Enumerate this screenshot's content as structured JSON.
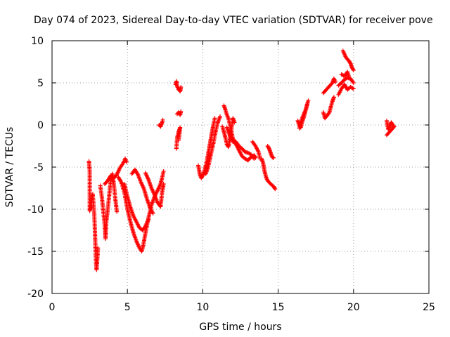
{
  "chart_data": {
    "type": "scatter",
    "title": "Day 074 of 2023, Sidereal Day-to-day VTEC variation (SDTVAR) for receiver pove",
    "xlabel": "GPS time / hours",
    "ylabel": "SDTVAR / TECUs",
    "xlim": [
      0,
      25
    ],
    "ylim": [
      -20,
      10
    ],
    "xticks": [
      0,
      5,
      10,
      15,
      20,
      25
    ],
    "yticks": [
      -20,
      -15,
      -10,
      -5,
      0,
      5,
      10
    ],
    "xtick_labels": [
      "0",
      "5",
      "10",
      "15",
      "20",
      "25"
    ],
    "ytick_labels": [
      "-20",
      "-15",
      "-10",
      "-5",
      "0",
      "5",
      "10"
    ],
    "grid": true,
    "marker": "+",
    "series": [
      {
        "name": "SDTVAR",
        "color": "#ff0000",
        "tracks": [
          [
            [
              2.45,
              -4.3
            ],
            [
              2.5,
              -5.5
            ],
            [
              2.5,
              -10.2
            ],
            [
              2.6,
              -9.5
            ],
            [
              2.7,
              -8.2
            ],
            [
              2.8,
              -10.5
            ],
            [
              2.85,
              -12.8
            ],
            [
              2.9,
              -15.5
            ],
            [
              2.95,
              -17.2
            ],
            [
              3.0,
              -16.0
            ],
            [
              3.05,
              -14.6
            ]
          ],
          [
            [
              3.2,
              -7.2
            ],
            [
              3.3,
              -8.5
            ],
            [
              3.4,
              -10.2
            ],
            [
              3.5,
              -12.0
            ],
            [
              3.55,
              -13.5
            ],
            [
              3.6,
              -11.5
            ],
            [
              3.7,
              -10.0
            ],
            [
              3.8,
              -8.2
            ],
            [
              3.9,
              -6.5
            ],
            [
              4.0,
              -5.8
            ],
            [
              4.1,
              -7.0
            ],
            [
              4.2,
              -8.8
            ],
            [
              4.3,
              -10.3
            ]
          ],
          [
            [
              3.5,
              -7.0
            ],
            [
              3.7,
              -6.6
            ],
            [
              3.9,
              -6.0
            ],
            [
              4.1,
              -6.3
            ],
            [
              4.3,
              -5.9
            ],
            [
              4.5,
              -5.1
            ],
            [
              4.7,
              -4.6
            ],
            [
              4.85,
              -4.0
            ],
            [
              4.95,
              -4.4
            ]
          ],
          [
            [
              4.4,
              -6.2
            ],
            [
              4.6,
              -6.8
            ],
            [
              4.8,
              -8.0
            ],
            [
              5.0,
              -10.0
            ],
            [
              5.2,
              -11.5
            ],
            [
              5.4,
              -12.8
            ],
            [
              5.6,
              -13.8
            ],
            [
              5.8,
              -14.6
            ],
            [
              5.95,
              -15.0
            ],
            [
              6.05,
              -14.3
            ],
            [
              6.2,
              -12.8
            ],
            [
              6.4,
              -11.0
            ],
            [
              6.6,
              -9.5
            ],
            [
              6.8,
              -8.5
            ],
            [
              7.0,
              -7.8
            ],
            [
              7.2,
              -7.0
            ],
            [
              7.3,
              -6.3
            ],
            [
              7.4,
              -5.5
            ]
          ],
          [
            [
              4.8,
              -7.0
            ],
            [
              5.0,
              -8.5
            ],
            [
              5.2,
              -9.8
            ],
            [
              5.4,
              -10.8
            ],
            [
              5.6,
              -11.5
            ],
            [
              5.8,
              -12.2
            ],
            [
              6.0,
              -12.5
            ],
            [
              6.2,
              -12.0
            ],
            [
              6.4,
              -11.2
            ]
          ],
          [
            [
              5.3,
              -5.8
            ],
            [
              5.5,
              -5.3
            ],
            [
              5.7,
              -5.9
            ],
            [
              5.9,
              -6.8
            ],
            [
              6.1,
              -7.6
            ],
            [
              6.3,
              -8.8
            ],
            [
              6.5,
              -9.8
            ],
            [
              6.7,
              -10.5
            ]
          ],
          [
            [
              6.2,
              -5.7
            ],
            [
              6.4,
              -6.5
            ],
            [
              6.6,
              -7.5
            ],
            [
              6.8,
              -8.3
            ],
            [
              7.0,
              -9.2
            ],
            [
              7.2,
              -9.7
            ],
            [
              7.3,
              -8.0
            ],
            [
              7.4,
              -7.0
            ]
          ],
          [
            [
              7.1,
              0.0
            ],
            [
              7.2,
              -0.2
            ],
            [
              7.3,
              0.3
            ],
            [
              7.35,
              0.6
            ]
          ],
          [
            [
              8.2,
              4.8
            ],
            [
              8.25,
              5.2
            ],
            [
              8.3,
              4.6
            ],
            [
              8.4,
              4.2
            ],
            [
              8.5,
              4.0
            ],
            [
              8.55,
              4.5
            ]
          ],
          [
            [
              8.25,
              -2.8
            ],
            [
              8.3,
              -1.5
            ],
            [
              8.4,
              -0.8
            ],
            [
              8.5,
              -0.3
            ],
            [
              8.4,
              -1.8
            ]
          ],
          [
            [
              8.3,
              1.3
            ],
            [
              8.4,
              1.5
            ],
            [
              8.5,
              1.2
            ],
            [
              8.55,
              1.6
            ]
          ],
          [
            [
              9.7,
              -4.8
            ],
            [
              9.8,
              -5.8
            ],
            [
              9.9,
              -6.3
            ],
            [
              10.0,
              -6.0
            ],
            [
              10.1,
              -5.5
            ],
            [
              10.2,
              -4.8
            ],
            [
              10.3,
              -4.0
            ],
            [
              10.4,
              -3.0
            ],
            [
              10.5,
              -2.0
            ],
            [
              10.6,
              -1.0
            ],
            [
              10.7,
              0.0
            ],
            [
              10.8,
              0.8
            ]
          ],
          [
            [
              10.2,
              -5.8
            ],
            [
              10.35,
              -5.0
            ],
            [
              10.5,
              -3.8
            ],
            [
              10.7,
              -2.2
            ],
            [
              10.85,
              -0.8
            ],
            [
              11.0,
              0.3
            ],
            [
              11.15,
              1.0
            ]
          ],
          [
            [
              11.4,
              2.3
            ],
            [
              11.5,
              1.8
            ],
            [
              11.6,
              1.2
            ],
            [
              11.7,
              0.8
            ],
            [
              11.8,
              0.0
            ],
            [
              11.9,
              -0.8
            ],
            [
              12.0,
              -1.6
            ],
            [
              12.2,
              -2.3
            ],
            [
              12.4,
              -3.0
            ],
            [
              12.6,
              -3.7
            ],
            [
              12.8,
              -4.0
            ],
            [
              13.0,
              -4.2
            ],
            [
              13.2,
              -3.8
            ],
            [
              13.4,
              -3.6
            ],
            [
              13.5,
              -3.9
            ]
          ],
          [
            [
              11.3,
              -0.2
            ],
            [
              11.4,
              -0.8
            ],
            [
              11.5,
              -1.5
            ],
            [
              11.6,
              -2.3
            ],
            [
              11.7,
              -2.6
            ],
            [
              11.8,
              -1.7
            ],
            [
              11.9,
              -0.5
            ],
            [
              12.0,
              0.8
            ],
            [
              12.1,
              0.3
            ]
          ],
          [
            [
              11.6,
              -0.3
            ],
            [
              11.8,
              -1.3
            ],
            [
              12.0,
              -2.0
            ],
            [
              12.2,
              -2.0
            ],
            [
              12.4,
              -2.5
            ],
            [
              12.6,
              -2.8
            ],
            [
              12.8,
              -3.2
            ],
            [
              13.0,
              -3.3
            ],
            [
              13.2,
              -3.5
            ],
            [
              13.4,
              -4.0
            ]
          ],
          [
            [
              13.3,
              -2.0
            ],
            [
              13.5,
              -2.5
            ],
            [
              13.7,
              -3.2
            ],
            [
              13.8,
              -4.0
            ]
          ],
          [
            [
              13.9,
              -4.0
            ],
            [
              14.0,
              -4.5
            ],
            [
              14.1,
              -5.5
            ],
            [
              14.2,
              -6.2
            ],
            [
              14.3,
              -6.6
            ],
            [
              14.5,
              -7.0
            ],
            [
              14.7,
              -7.3
            ],
            [
              14.8,
              -7.6
            ]
          ],
          [
            [
              14.3,
              -2.5
            ],
            [
              14.4,
              -2.8
            ],
            [
              14.5,
              -3.3
            ],
            [
              14.6,
              -3.8
            ],
            [
              14.7,
              -3.9
            ]
          ],
          [
            [
              16.3,
              0.5
            ],
            [
              16.4,
              0.0
            ],
            [
              16.5,
              -0.3
            ],
            [
              16.6,
              0.4
            ],
            [
              16.7,
              0.9
            ],
            [
              16.8,
              1.6
            ],
            [
              16.9,
              2.3
            ],
            [
              17.0,
              2.9
            ]
          ],
          [
            [
              16.4,
              -0.4
            ],
            [
              16.55,
              0.6
            ],
            [
              16.7,
              1.3
            ],
            [
              16.85,
              1.9
            ],
            [
              16.95,
              2.6
            ]
          ],
          [
            [
              18.0,
              3.8
            ],
            [
              18.2,
              4.2
            ],
            [
              18.4,
              4.6
            ],
            [
              18.6,
              5.0
            ],
            [
              18.7,
              5.5
            ],
            [
              18.8,
              5.1
            ]
          ],
          [
            [
              18.0,
              1.5
            ],
            [
              18.1,
              0.8
            ],
            [
              18.2,
              1.0
            ],
            [
              18.4,
              1.5
            ],
            [
              18.5,
              2.2
            ],
            [
              18.6,
              2.8
            ],
            [
              18.7,
              3.3
            ]
          ],
          [
            [
              19.0,
              4.7
            ],
            [
              19.2,
              5.0
            ],
            [
              19.4,
              5.4
            ],
            [
              19.6,
              5.6
            ],
            [
              19.8,
              5.5
            ],
            [
              20.0,
              5.0
            ]
          ],
          [
            [
              19.0,
              3.6
            ],
            [
              19.2,
              4.3
            ],
            [
              19.4,
              4.8
            ],
            [
              19.6,
              4.2
            ],
            [
              19.8,
              4.5
            ],
            [
              20.0,
              4.3
            ]
          ],
          [
            [
              19.3,
              8.8
            ],
            [
              19.5,
              8.0
            ],
            [
              19.7,
              7.6
            ],
            [
              19.8,
              7.3
            ],
            [
              19.9,
              6.8
            ],
            [
              20.0,
              6.5
            ]
          ],
          [
            [
              19.2,
              6.0
            ],
            [
              19.4,
              5.8
            ],
            [
              19.6,
              6.3
            ],
            [
              19.7,
              5.7
            ]
          ],
          [
            [
              22.2,
              0.5
            ],
            [
              22.3,
              -0.5
            ],
            [
              22.4,
              -0.2
            ],
            [
              22.5,
              0.3
            ],
            [
              22.6,
              0.0
            ],
            [
              22.7,
              -0.2
            ],
            [
              22.2,
              -1.2
            ]
          ]
        ]
      }
    ]
  }
}
